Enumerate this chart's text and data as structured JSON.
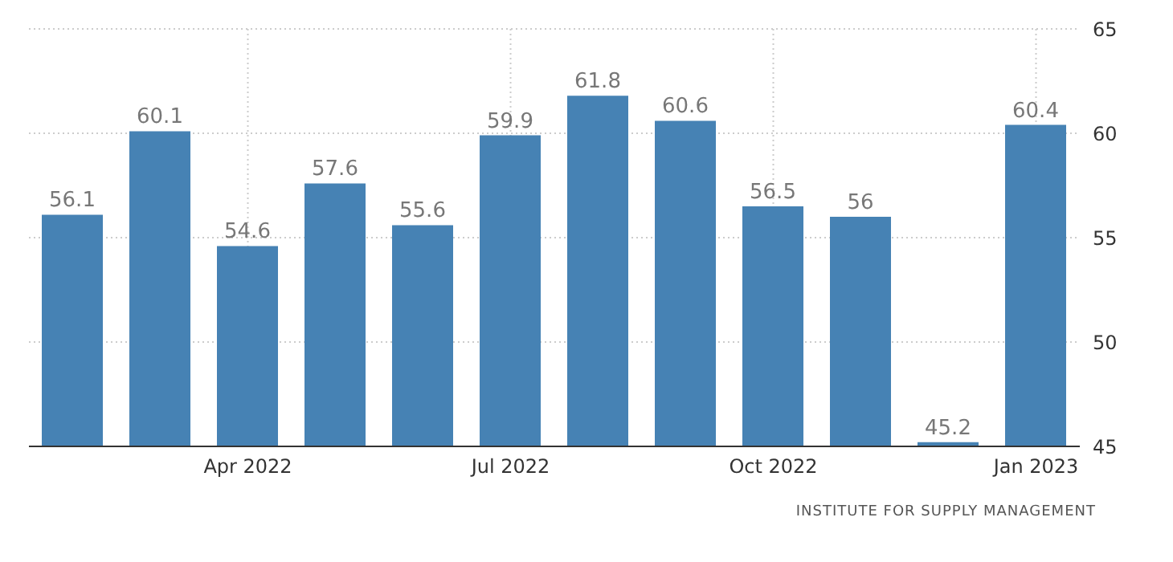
{
  "chart_data": {
    "type": "bar",
    "categories": [
      null,
      null,
      "Apr 2022",
      null,
      null,
      "Jul 2022",
      null,
      null,
      "Oct 2022",
      null,
      null,
      "Jan 2023"
    ],
    "values": [
      56.1,
      60.1,
      54.6,
      57.6,
      55.6,
      59.9,
      61.8,
      60.6,
      56.5,
      56,
      45.2,
      60.4
    ],
    "color": "#4682b4",
    "ylim": [
      45,
      65
    ],
    "yticks": [
      45,
      50,
      55,
      60,
      65
    ],
    "grid": true,
    "data_labels": true,
    "annotations": [
      "INSTITUTE FOR SUPPLY MANAGEMENT"
    ]
  }
}
